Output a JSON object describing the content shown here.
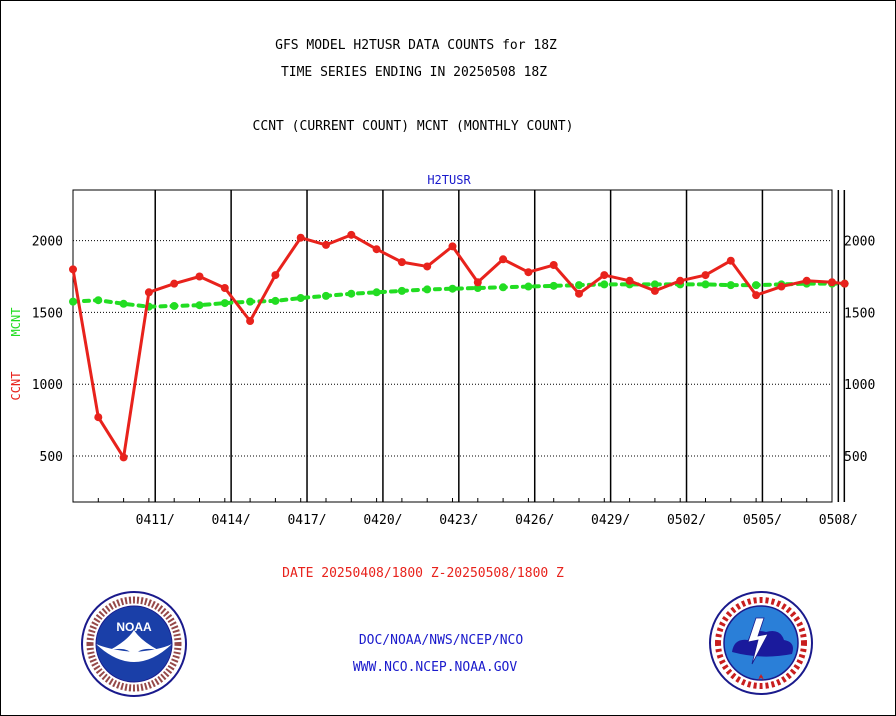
{
  "header": {
    "title_line1": "GFS MODEL H2TUSR DATA COUNTS for 18Z",
    "title_line2": "TIME SERIES ENDING IN 20250508 18Z",
    "subtitle": "CCNT (CURRENT COUNT) MCNT (MONTHLY COUNT)"
  },
  "footer": {
    "date_range": "DATE 20250408/1800 Z-20250508/1800 Z",
    "credit_line1": "DOC/NOAA/NWS/NCEP/NCO",
    "credit_line2": "WWW.NCO.NCEP.NOAA.GOV"
  },
  "logos": {
    "noaa": {
      "icon": "noaa-logo",
      "text": "NOAA",
      "ring_text": "NATIONAL OCEANIC AND ATMOSPHERIC ADMINISTRATION · U.S. DEPARTMENT OF COMMERCE"
    },
    "nws": {
      "icon": "nws-logo",
      "ring_text": "NATIONAL WEATHER SERVICE"
    }
  },
  "colors": {
    "ccnt": "#e8221c",
    "mcnt": "#22dd22",
    "series_label": "#1a1acc",
    "grid": "#000000"
  },
  "chart_data": {
    "type": "line",
    "title": "H2TUSR",
    "y_left_labels": [
      "CCNT",
      "MCNT"
    ],
    "ylim": [
      200,
      2350
    ],
    "yticks": [
      500,
      1000,
      1500,
      2000
    ],
    "x_tick_labels": [
      "0411/",
      "0414/",
      "0417/",
      "0420/",
      "0423/",
      "0426/",
      "0429/",
      "0502/",
      "0505/",
      "0508/"
    ],
    "x_tick_days": [
      3,
      6,
      9,
      12,
      15,
      18,
      21,
      24,
      27,
      30
    ],
    "grid": true,
    "legend": "none",
    "series": [
      {
        "name": "CCNT",
        "x_days": [
          0,
          1,
          2,
          3,
          4,
          5,
          6,
          7,
          8,
          9,
          10,
          11,
          12,
          13,
          14,
          15,
          16,
          17,
          18,
          19,
          20,
          21,
          22,
          23,
          24,
          25,
          26,
          27,
          28,
          29,
          30,
          30.5
        ],
        "values": [
          1800,
          770,
          490,
          1640,
          1700,
          1750,
          1670,
          1440,
          1760,
          2020,
          1970,
          2040,
          1940,
          1850,
          1820,
          1960,
          1710,
          1870,
          1780,
          1830,
          1630,
          1760,
          1720,
          1650,
          1720,
          1760,
          1860,
          1620,
          1680,
          1720,
          1710,
          1700
        ]
      },
      {
        "name": "MCNT",
        "x_days": [
          0,
          1,
          2,
          3,
          4,
          5,
          6,
          7,
          8,
          9,
          10,
          11,
          12,
          13,
          14,
          15,
          16,
          17,
          18,
          19,
          20,
          21,
          22,
          23,
          24,
          25,
          26,
          27,
          28,
          29,
          30,
          30.5
        ],
        "values": [
          1575,
          1585,
          1560,
          1540,
          1545,
          1550,
          1565,
          1575,
          1580,
          1600,
          1615,
          1630,
          1640,
          1650,
          1660,
          1665,
          1670,
          1675,
          1680,
          1685,
          1690,
          1695,
          1695,
          1695,
          1695,
          1695,
          1690,
          1690,
          1695,
          1700,
          1700,
          1700
        ]
      }
    ]
  }
}
